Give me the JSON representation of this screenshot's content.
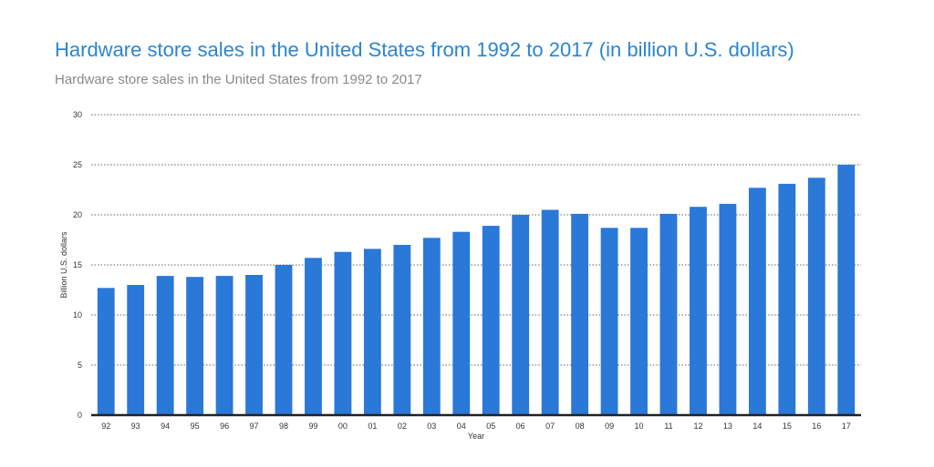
{
  "chart_data": {
    "type": "bar",
    "title": "Hardware store sales in the United States from 1992 to 2017 (in billion U.S. dollars)",
    "subtitle": "Hardware store sales in the United States from 1992 to 2017",
    "xlabel": "Year",
    "ylabel": "Billion U.S. dollars",
    "ylim": [
      0,
      30
    ],
    "yticks": [
      0,
      5,
      10,
      15,
      20,
      25,
      30
    ],
    "grid": true,
    "legend": "none",
    "bar_color": "#2a78d8",
    "categories": [
      "92",
      "93",
      "94",
      "95",
      "96",
      "97",
      "98",
      "99",
      "00",
      "01",
      "02",
      "03",
      "04",
      "05",
      "06",
      "07",
      "08",
      "09",
      "10",
      "11",
      "12",
      "13",
      "14",
      "15",
      "16",
      "17"
    ],
    "values": [
      12.7,
      13.0,
      13.9,
      13.8,
      13.9,
      14.0,
      15.0,
      15.7,
      16.3,
      16.6,
      17.0,
      17.7,
      18.3,
      18.9,
      20.0,
      20.5,
      20.1,
      18.7,
      18.7,
      20.1,
      20.8,
      21.1,
      22.7,
      23.1,
      23.7,
      25.0
    ]
  }
}
